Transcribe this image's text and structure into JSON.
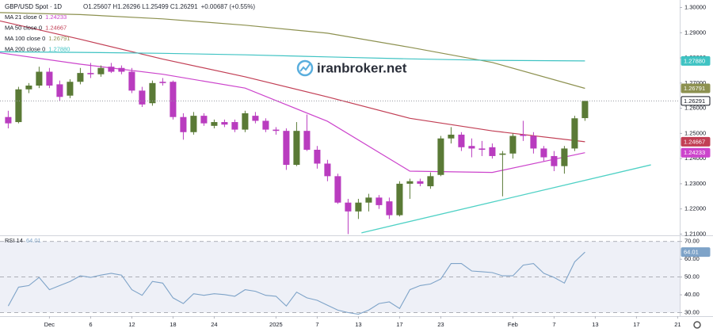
{
  "header": {
    "symbol": "GBP/USD Spot · 1D",
    "ohlc": "O1.25607 H1.26296 L1.25499 C1.26291",
    "change": "+0.00687 (+0.55%)"
  },
  "watermark": "iranbroker.net",
  "chart_data": [
    {
      "type": "candlestick",
      "xlim": [
        -0.8,
        65.2
      ],
      "ylim": [
        1.2095,
        1.303
      ],
      "yticks": [
        {
          "value": 1.3,
          "label": "1.30000"
        },
        {
          "value": 1.29,
          "label": "1.29000"
        },
        {
          "value": 1.28,
          "label": "1.28000"
        },
        {
          "value": 1.27,
          "label": "1.27000"
        },
        {
          "value": 1.26,
          "label": "1.26000"
        },
        {
          "value": 1.25,
          "label": "1.25000"
        },
        {
          "value": 1.24,
          "label": "1.24000"
        },
        {
          "value": 1.23,
          "label": "1.23000"
        },
        {
          "value": 1.22,
          "label": "1.22000"
        },
        {
          "value": 1.21,
          "label": "1.21000"
        }
      ],
      "up_color": "#5a7a36",
      "down_color": "#b93cbf",
      "open": [
        1.2565,
        1.2545,
        1.2675,
        1.269,
        1.2745,
        1.2695,
        1.265,
        1.2705,
        1.274,
        1.2735,
        1.2765,
        1.276,
        1.2745,
        1.267,
        1.262,
        1.2705,
        1.2705,
        1.2565,
        1.2505,
        1.257,
        1.253,
        1.2545,
        1.2545,
        1.2515,
        1.257,
        1.255,
        1.2515,
        1.251,
        1.2375,
        1.251,
        1.2435,
        1.238,
        1.233,
        1.2225,
        1.219,
        1.2225,
        1.2245,
        1.223,
        1.2175,
        1.23,
        1.231,
        1.229,
        1.2335,
        1.248,
        1.2495,
        1.245,
        1.244,
        1.2445,
        1.2415,
        1.242,
        1.2495,
        1.249,
        1.244,
        1.241,
        1.237,
        1.244,
        1.25607
      ],
      "high": [
        1.259,
        1.2685,
        1.27,
        1.2765,
        1.276,
        1.271,
        1.2715,
        1.276,
        1.278,
        1.277,
        1.278,
        1.277,
        1.276,
        1.2685,
        1.271,
        1.272,
        1.271,
        1.258,
        1.2585,
        1.258,
        1.2555,
        1.2555,
        1.2555,
        1.259,
        1.2585,
        1.256,
        1.2525,
        1.252,
        1.2545,
        1.2575,
        1.245,
        1.2395,
        1.234,
        1.224,
        1.224,
        1.226,
        1.2255,
        1.2245,
        1.231,
        1.232,
        1.232,
        1.2345,
        1.249,
        1.2525,
        1.2505,
        1.248,
        1.247,
        1.246,
        1.243,
        1.25,
        1.255,
        1.2505,
        1.245,
        1.243,
        1.245,
        1.257,
        1.26296
      ],
      "low": [
        1.252,
        1.254,
        1.266,
        1.268,
        1.268,
        1.263,
        1.264,
        1.2695,
        1.272,
        1.2725,
        1.274,
        1.2735,
        1.266,
        1.2605,
        1.261,
        1.269,
        1.2555,
        1.2475,
        1.2495,
        1.253,
        1.252,
        1.2525,
        1.2505,
        1.2505,
        1.254,
        1.2505,
        1.2495,
        1.2355,
        1.237,
        1.243,
        1.236,
        1.231,
        1.222,
        1.21,
        1.216,
        1.219,
        1.22,
        1.216,
        1.217,
        1.224,
        1.229,
        1.228,
        1.233,
        1.246,
        1.243,
        1.2405,
        1.241,
        1.24,
        1.225,
        1.24,
        1.247,
        1.242,
        1.239,
        1.235,
        1.234,
        1.243,
        1.25499
      ],
      "close": [
        1.254,
        1.2675,
        1.269,
        1.2745,
        1.269,
        1.2645,
        1.2705,
        1.274,
        1.2735,
        1.276,
        1.2745,
        1.2745,
        1.267,
        1.2615,
        1.27,
        1.27,
        1.2565,
        1.2505,
        1.257,
        1.254,
        1.2545,
        1.2535,
        1.2515,
        1.258,
        1.255,
        1.2515,
        1.251,
        1.2375,
        1.251,
        1.2435,
        1.238,
        1.233,
        1.2225,
        1.219,
        1.2225,
        1.2245,
        1.2215,
        1.2175,
        1.23,
        1.231,
        1.23,
        1.233,
        1.248,
        1.2495,
        1.2445,
        1.244,
        1.2435,
        1.241,
        1.242,
        1.249,
        1.249,
        1.244,
        1.2405,
        1.237,
        1.244,
        1.256,
        1.26291
      ],
      "last_value_label": "1.26291",
      "series": [
        {
          "name": "MA 21 close 0",
          "color": "#cc44cc",
          "x": [
            -0.8,
            7,
            15,
            23,
            31,
            39,
            47,
            56
          ],
          "values": [
            1.282,
            1.2775,
            1.2735,
            1.268,
            1.2548,
            1.235,
            1.2345,
            1.24233
          ],
          "last_value_label": "1.24233"
        },
        {
          "name": "MA 50 close 0",
          "color": "#c23f55",
          "x": [
            -0.8,
            7,
            15,
            23,
            31,
            39,
            47,
            56
          ],
          "values": [
            1.2947,
            1.2874,
            1.2795,
            1.2725,
            1.2645,
            1.256,
            1.251,
            1.24667
          ],
          "last_value_label": "1.24667"
        },
        {
          "name": "MA 100 close 0",
          "color": "#8d9150",
          "x": [
            -0.8,
            7,
            15,
            23,
            31,
            39,
            47,
            56
          ],
          "values": [
            1.298,
            1.2972,
            1.2955,
            1.293,
            1.2898,
            1.2842,
            1.2782,
            1.26791
          ],
          "last_value_label": "1.26791"
        },
        {
          "name": "MA 200 close 0",
          "color": "#3fc3c3",
          "x": [
            -0.8,
            7,
            15,
            23,
            31,
            39,
            47,
            56
          ],
          "values": [
            1.2824,
            1.2822,
            1.2818,
            1.2812,
            1.2804,
            1.2796,
            1.279,
            1.2788
          ],
          "last_value_label": "1.27880"
        }
      ],
      "trendline": {
        "color": "#4fd1c5",
        "x": [
          34.3,
          62.4
        ],
        "values": [
          1.2105,
          1.2375
        ]
      }
    },
    {
      "type": "line",
      "title": "RSI 14",
      "xlim": [
        -0.8,
        65.2
      ],
      "ylim": [
        28,
        73
      ],
      "yticks": [
        {
          "value": 70,
          "label": "70.00"
        },
        {
          "value": 60,
          "label": "60.00"
        },
        {
          "value": 50,
          "label": "50.00"
        },
        {
          "value": 40,
          "label": "40.00"
        },
        {
          "value": 30,
          "label": "30.00"
        }
      ],
      "levels": [
        30,
        50,
        70
      ],
      "color": "#7ea3c8",
      "values": [
        33.7,
        44.3,
        45.2,
        49.8,
        42.9,
        45.2,
        47.5,
        50.7,
        49.8,
        51.1,
        52.1,
        51.1,
        42.9,
        39.7,
        47.5,
        46.6,
        38.3,
        35.1,
        40.6,
        39.7,
        40.6,
        40.1,
        39.2,
        42.9,
        42.0,
        39.7,
        39.2,
        33.7,
        41.5,
        38.3,
        36.9,
        34.1,
        31.4,
        30.0,
        29.1,
        31.4,
        35.1,
        36.0,
        32.3,
        42.9,
        45.2,
        46.1,
        48.9,
        57.6,
        57.6,
        53.4,
        53.0,
        52.5,
        50.7,
        50.7,
        56.7,
        57.6,
        52.1,
        49.8,
        46.6,
        58.5,
        64.01
      ],
      "last_value_label": "64.01",
      "xticks": [
        {
          "value": 4,
          "label": "Dec"
        },
        {
          "value": 8,
          "label": "6"
        },
        {
          "value": 12,
          "label": "12"
        },
        {
          "value": 16,
          "label": "18"
        },
        {
          "value": 20,
          "label": "24"
        },
        {
          "value": 26,
          "label": "2025"
        },
        {
          "value": 30,
          "label": "7"
        },
        {
          "value": 34,
          "label": "13"
        },
        {
          "value": 38,
          "label": "17"
        },
        {
          "value": 42,
          "label": "23"
        },
        {
          "value": 49,
          "label": "Feb"
        },
        {
          "value": 53,
          "label": "7"
        },
        {
          "value": 57,
          "label": "13"
        },
        {
          "value": 61,
          "label": "17"
        },
        {
          "value": 65,
          "label": "21"
        }
      ]
    }
  ]
}
